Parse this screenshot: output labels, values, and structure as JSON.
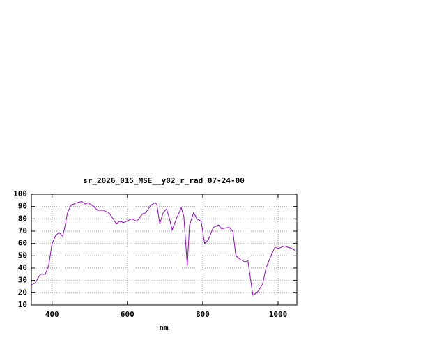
{
  "chart_data": {
    "type": "line",
    "title": "sr_2026_015_MSE__y02_r_rad 07-24-00",
    "x_label": "nm",
    "xlim": [
      345,
      1050
    ],
    "xticks": [
      400,
      600,
      800,
      1000
    ],
    "ylim": [
      10,
      100
    ],
    "yticks": [
      10,
      20,
      30,
      40,
      50,
      60,
      70,
      80,
      90,
      100
    ],
    "grid": true,
    "series": [
      {
        "color": "#9400d3",
        "x": [
          345,
          355,
          369,
          382,
          391,
          400,
          409,
          418,
          428,
          433,
          441,
          450,
          465,
          479,
          487,
          496,
          511,
          520,
          535,
          551,
          562,
          571,
          579,
          590,
          597,
          612,
          625,
          640,
          649,
          662,
          673,
          678,
          686,
          695,
          704,
          712,
          719,
          730,
          743,
          750,
          759,
          765,
          776,
          785,
          796,
          805,
          815,
          828,
          842,
          850,
          870,
          880,
          888,
          900,
          912,
          920,
          933,
          944,
          959,
          968,
          981,
          992,
          1000,
          1010,
          1017,
          1025,
          1036,
          1047
        ],
        "values": [
          26,
          28,
          35,
          35,
          42,
          60,
          66,
          69,
          66,
          72,
          85,
          91,
          93,
          94,
          92,
          93,
          90,
          87,
          87,
          85,
          80,
          76,
          78,
          77,
          78,
          80,
          78,
          84,
          85,
          91,
          93,
          92,
          76,
          85,
          88,
          80,
          71,
          80,
          89,
          82,
          42,
          75,
          85,
          80,
          78,
          60,
          63,
          73,
          75,
          72,
          73,
          70,
          50,
          47,
          45,
          46,
          18,
          20,
          27,
          40,
          50,
          57,
          56,
          57,
          58,
          57,
          56,
          54
        ]
      }
    ]
  }
}
